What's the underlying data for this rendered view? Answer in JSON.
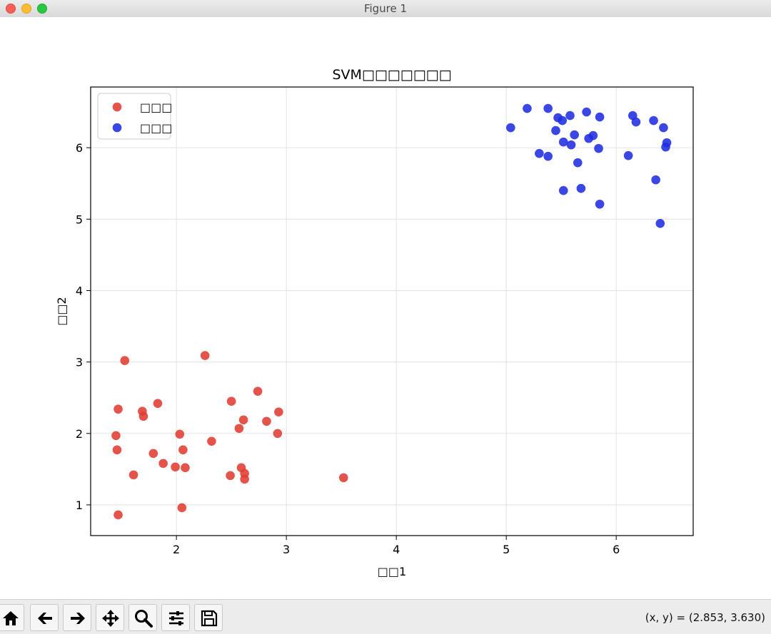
{
  "window": {
    "title": "Figure 1"
  },
  "chart_data": {
    "type": "scatter",
    "title": "SVM□□□□□□□",
    "xlabel": "□□1",
    "ylabel": "□□2",
    "xlim": [
      1.22,
      6.7
    ],
    "ylim": [
      0.57,
      6.85
    ],
    "xticks": [
      2,
      3,
      4,
      5,
      6
    ],
    "yticks": [
      1,
      2,
      3,
      4,
      5,
      6
    ],
    "grid": true,
    "legend_position": "top-left",
    "series": [
      {
        "name": "□□□",
        "color": "#e03c31",
        "points": [
          [
            1.47,
            0.86
          ],
          [
            1.53,
            3.02
          ],
          [
            1.47,
            2.34
          ],
          [
            1.45,
            1.97
          ],
          [
            1.46,
            1.77
          ],
          [
            1.61,
            1.42
          ],
          [
            1.69,
            2.31
          ],
          [
            1.7,
            2.24
          ],
          [
            1.79,
            1.72
          ],
          [
            1.83,
            2.42
          ],
          [
            1.88,
            1.58
          ],
          [
            1.99,
            1.53
          ],
          [
            2.03,
            1.99
          ],
          [
            2.05,
            0.96
          ],
          [
            2.06,
            1.77
          ],
          [
            2.08,
            1.52
          ],
          [
            2.26,
            3.09
          ],
          [
            2.32,
            1.89
          ],
          [
            2.49,
            1.41
          ],
          [
            2.5,
            2.45
          ],
          [
            2.57,
            2.07
          ],
          [
            2.59,
            1.52
          ],
          [
            2.61,
            2.19
          ],
          [
            2.62,
            1.44
          ],
          [
            2.62,
            1.36
          ],
          [
            2.74,
            2.59
          ],
          [
            2.82,
            2.17
          ],
          [
            2.92,
            2.0
          ],
          [
            2.93,
            2.3
          ],
          [
            3.52,
            1.38
          ]
        ]
      },
      {
        "name": "□□□",
        "color": "#1f2ee0",
        "points": [
          [
            5.04,
            6.28
          ],
          [
            5.19,
            6.55
          ],
          [
            5.3,
            5.92
          ],
          [
            5.38,
            6.55
          ],
          [
            5.38,
            5.88
          ],
          [
            5.45,
            6.24
          ],
          [
            5.47,
            6.42
          ],
          [
            5.51,
            6.38
          ],
          [
            5.52,
            6.08
          ],
          [
            5.52,
            5.4
          ],
          [
            5.58,
            6.45
          ],
          [
            5.59,
            6.04
          ],
          [
            5.62,
            6.18
          ],
          [
            5.65,
            5.79
          ],
          [
            5.68,
            5.43
          ],
          [
            5.73,
            6.5
          ],
          [
            5.75,
            6.13
          ],
          [
            5.79,
            6.17
          ],
          [
            5.84,
            5.99
          ],
          [
            5.85,
            6.43
          ],
          [
            5.85,
            5.21
          ],
          [
            6.11,
            5.89
          ],
          [
            6.15,
            6.45
          ],
          [
            6.18,
            6.36
          ],
          [
            6.34,
            6.38
          ],
          [
            6.36,
            5.55
          ],
          [
            6.4,
            4.94
          ],
          [
            6.43,
            6.28
          ],
          [
            6.45,
            6.01
          ],
          [
            6.46,
            6.07
          ]
        ]
      }
    ]
  },
  "toolbar": {
    "buttons": [
      {
        "icon": "home-icon"
      },
      {
        "icon": "back-arrow-icon"
      },
      {
        "icon": "forward-arrow-icon"
      },
      {
        "icon": "pan-move-icon"
      },
      {
        "icon": "zoom-magnifier-icon"
      },
      {
        "icon": "configure-subplots-icon"
      },
      {
        "icon": "save-floppy-icon"
      }
    ],
    "coords": "(x, y) = (2.853, 3.630)"
  }
}
